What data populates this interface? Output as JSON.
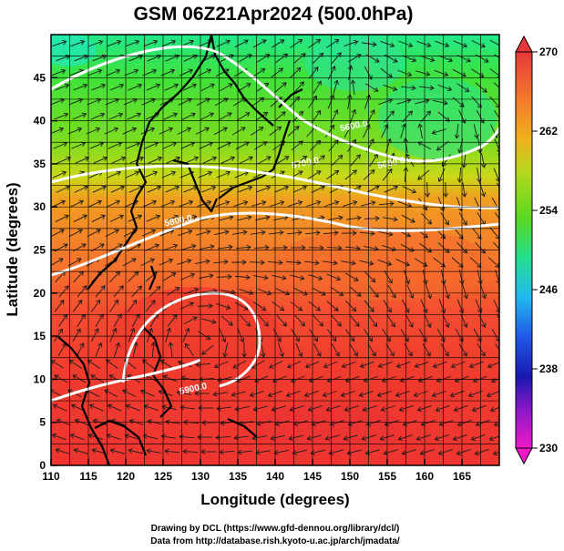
{
  "title": "GSM 06Z21Apr2024 (500.0hPa)",
  "xlabel": "Longitude (degrees)",
  "ylabel": "Latitude  (degrees)",
  "x_ticks": [
    "110",
    "115",
    "120",
    "125",
    "130",
    "135",
    "140",
    "145",
    "150",
    "155",
    "160",
    "165"
  ],
  "y_ticks": [
    "0",
    "5",
    "10",
    "15",
    "20",
    "25",
    "30",
    "35",
    "40",
    "45"
  ],
  "colorbar": {
    "ticks": [
      "270",
      "262",
      "254",
      "246",
      "238",
      "230"
    ],
    "min": 230,
    "max": 270
  },
  "contour_labels": [
    {
      "text": "5600.0",
      "lon": 150.5,
      "lat": 39.5
    },
    {
      "text": "5700.0",
      "lon": 144,
      "lat": 35.2
    },
    {
      "text": "5600.0",
      "lon": 155.5,
      "lat": 35.2
    },
    {
      "text": "5800.0",
      "lon": 127,
      "lat": 28.5
    },
    {
      "text": "5900.0",
      "lon": 129,
      "lat": 9.0
    }
  ],
  "credits": {
    "line1": "Drawing by DCL (https://www.gfd-dennou.org/library/dcl/)",
    "line2": "Data from http://database.rish.kyoto-u.ac.jp/arch/jmadata/"
  },
  "colors": {
    "warm": "#f03a2e",
    "cool": "#22e07a",
    "frame": "#000000"
  },
  "chart_data": {
    "type": "heatmap",
    "title": "GSM 06Z21Apr2024 (500.0hPa)",
    "xlabel": "Longitude (degrees)",
    "ylabel": "Latitude  (degrees)",
    "xlim": [
      110,
      170
    ],
    "ylim": [
      0,
      50
    ],
    "colorbar_range": [
      230,
      270
    ],
    "contour_values": [
      5600.0,
      5700.0,
      5800.0,
      5900.0
    ]
  }
}
